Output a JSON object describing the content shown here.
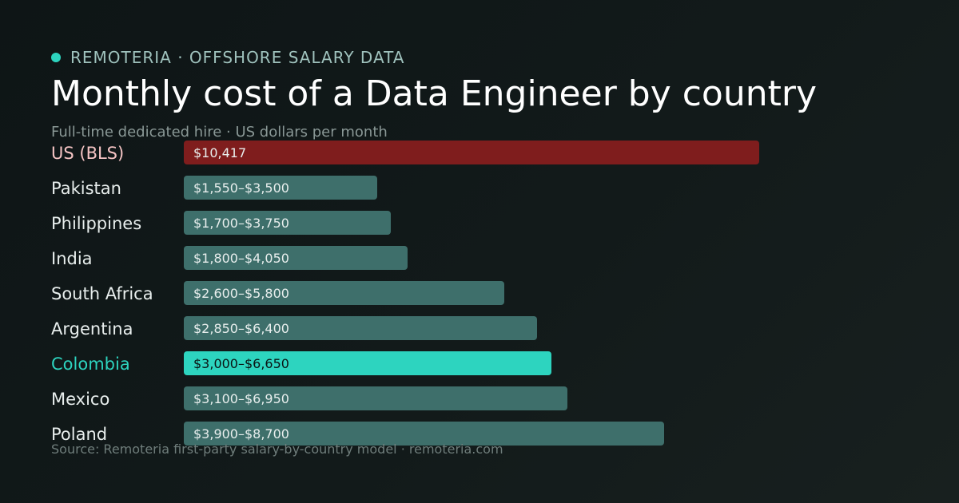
{
  "header": {
    "eyebrow": "REMOTERIA · OFFSHORE SALARY DATA",
    "title": "Monthly cost of a Data Engineer by country",
    "subtitle": "Full-time dedicated hire · US dollars per month"
  },
  "footer": {
    "source": "Source: Remoteria first-party salary-by-country model · remoteria.com"
  },
  "colors": {
    "accent": "#2dd4bf",
    "benchmark": "#7f1d1d",
    "bar": "#3e6f6b",
    "label": "#e8eeed",
    "benchmark_label": "#f3c3c3",
    "accent_label": "#2dd4bf",
    "bar_text": "#e8eeed",
    "accent_bar_text": "#0b1414"
  },
  "chart_data": {
    "type": "bar",
    "orientation": "horizontal",
    "title": "Monthly cost of a Data Engineer by country",
    "subtitle": "Full-time dedicated hire · US dollars per month",
    "xlim": [
      0,
      10417
    ],
    "grid": false,
    "categories": [
      "US (BLS)",
      "Pakistan",
      "Philippines",
      "India",
      "South Africa",
      "Argentina",
      "Colombia",
      "Mexico",
      "Poland"
    ],
    "values": [
      10417,
      3500,
      3750,
      4050,
      5800,
      6400,
      6650,
      6950,
      8700
    ],
    "range_low": [
      null,
      1550,
      1700,
      1800,
      2600,
      2850,
      3000,
      3100,
      3900
    ],
    "data_labels": [
      "$10,417",
      "$1,550–$3,500",
      "$1,700–$3,750",
      "$1,800–$4,050",
      "$2,600–$5,800",
      "$2,850–$6,400",
      "$3,000–$6,650",
      "$3,100–$6,950",
      "$3,900–$8,700"
    ],
    "highlight": {
      "benchmark": "US (BLS)",
      "focus": "Colombia"
    }
  }
}
